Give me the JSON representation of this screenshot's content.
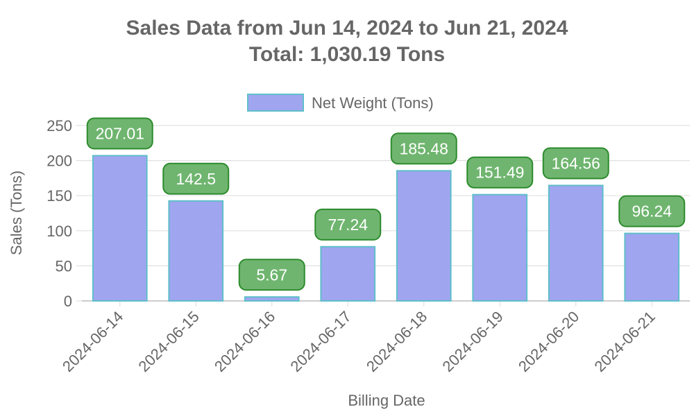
{
  "chart_data": {
    "type": "bar",
    "title": "Sales Data from Jun 14, 2024 to Jun 21, 2024",
    "subtitle": "Total: 1,030.19 Tons",
    "xlabel": "Billing Date",
    "ylabel": "Sales (Tons)",
    "ylim": [
      0,
      250
    ],
    "yticks": [
      0,
      50,
      100,
      150,
      200,
      250
    ],
    "grid": true,
    "legend_position": "top-center",
    "categories": [
      "2024-06-14",
      "2024-06-15",
      "2024-06-16",
      "2024-06-17",
      "2024-06-18",
      "2024-06-19",
      "2024-06-20",
      "2024-06-21"
    ],
    "series": [
      {
        "name": "Net Weight (Tons)",
        "values": [
          207.01,
          142.5,
          5.67,
          77.24,
          185.48,
          151.49,
          164.56,
          96.24
        ],
        "data_labels": [
          "207.01",
          "142.5",
          "5.67",
          "77.24",
          "185.48",
          "151.49",
          "164.56",
          "96.24"
        ]
      }
    ],
    "colors": {
      "bar_fill": "#a0a5f0",
      "bar_stroke": "#5fbfca",
      "label_fill": "#6fb56f",
      "label_stroke": "#2e8b2e",
      "grid": "#e0e0e0",
      "axis": "#bdbdbd",
      "text": "#666666"
    }
  }
}
